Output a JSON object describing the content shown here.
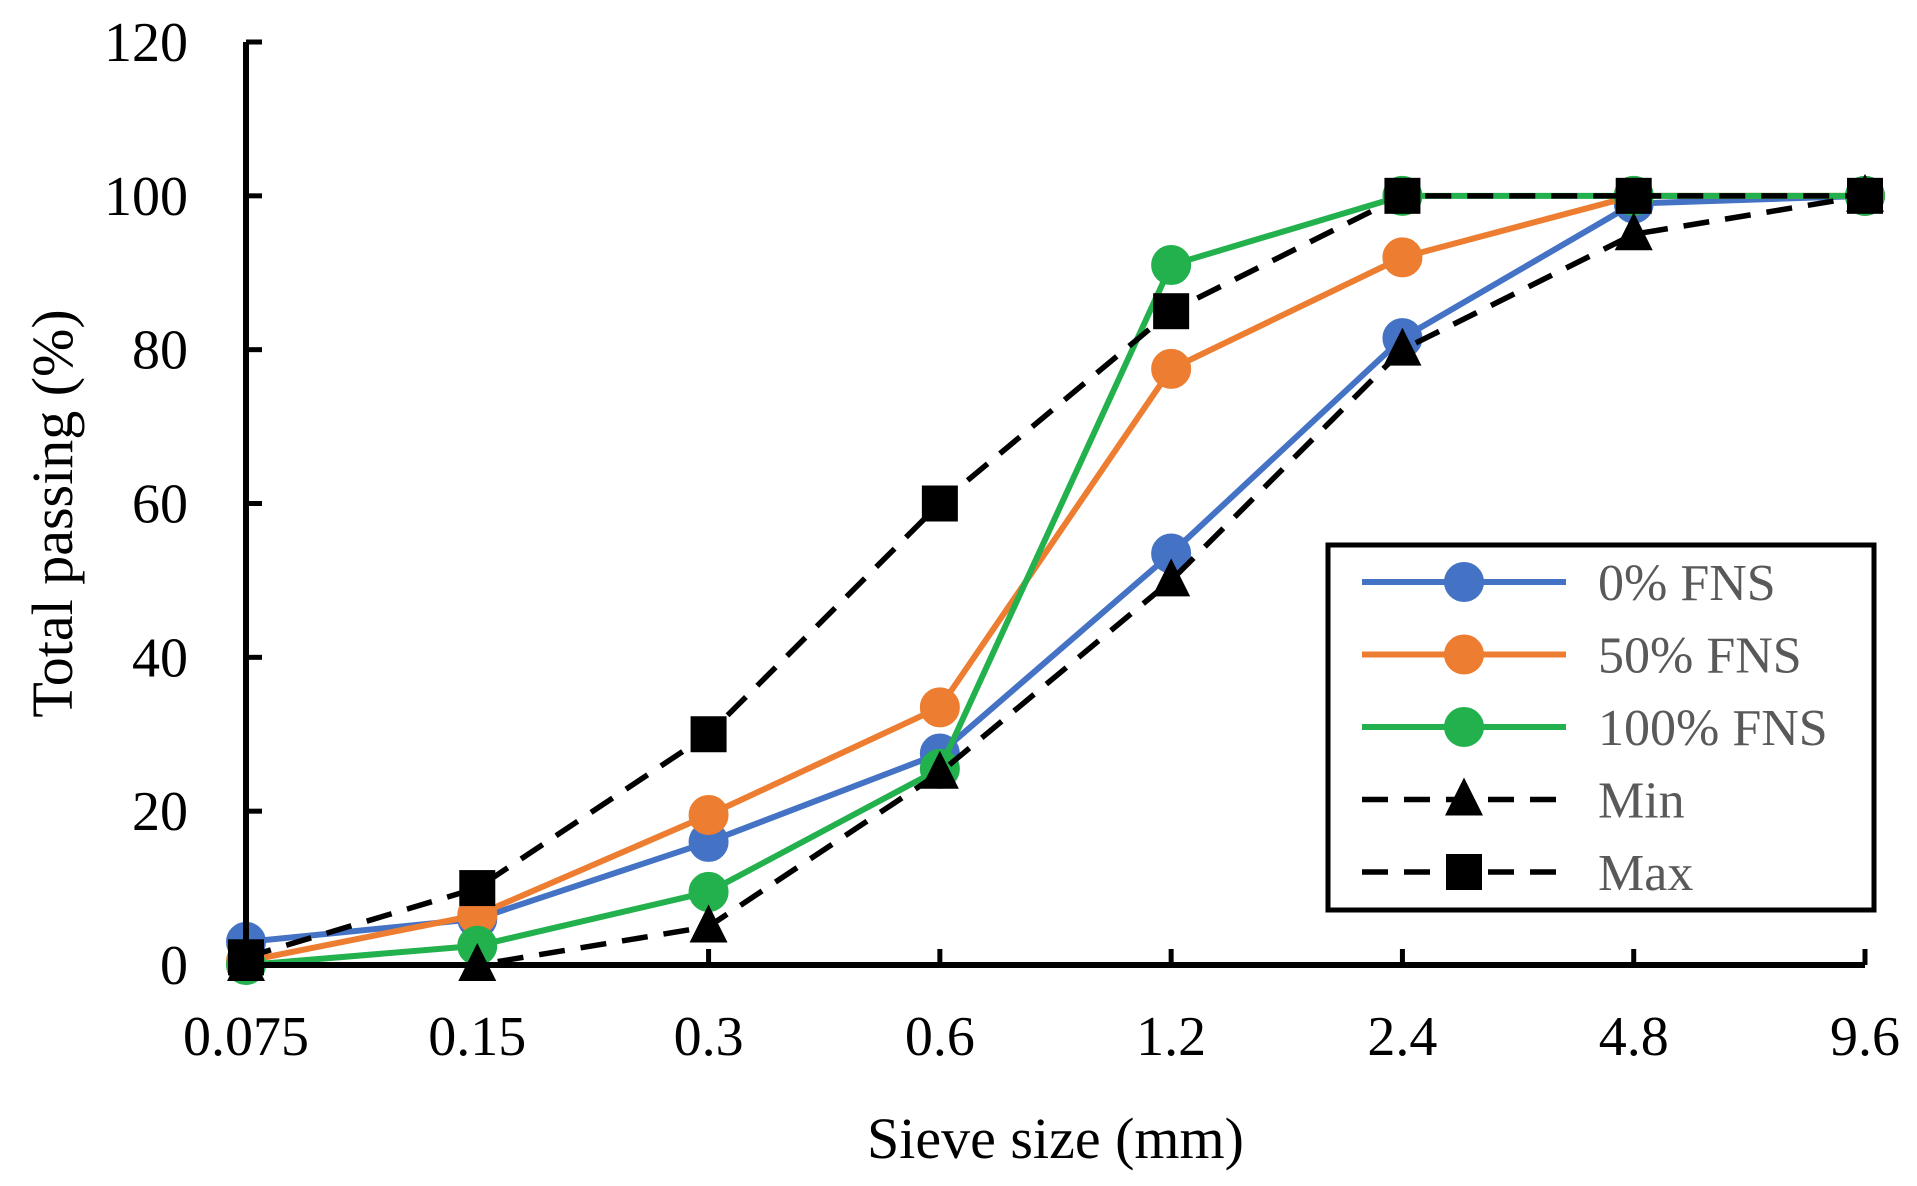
{
  "chart_data": {
    "type": "line",
    "title": "",
    "xlabel": "Sieve size (mm)",
    "ylabel": "Total passing (%)",
    "x_scale": "log2-categorical",
    "categories": [
      "0.075",
      "0.15",
      "0.3",
      "0.6",
      "1.2",
      "2.4",
      "4.8",
      "9.6"
    ],
    "ylim": [
      0,
      120
    ],
    "yticks": [
      "0",
      "20",
      "40",
      "60",
      "80",
      "100",
      "120"
    ],
    "grid": false,
    "legend_position": "right, lower-middle, boxed",
    "series": [
      {
        "name": "0% FNS",
        "color": "#4472C4",
        "line_style": "solid",
        "marker": "circle",
        "values": [
          3,
          6,
          16,
          27.5,
          53.5,
          81.5,
          99,
          100
        ]
      },
      {
        "name": "50% FNS",
        "color": "#ED7D31",
        "line_style": "solid",
        "marker": "circle",
        "values": [
          0.5,
          6.5,
          19.5,
          33.5,
          77.5,
          92,
          100,
          100
        ]
      },
      {
        "name": "100% FNS",
        "color": "#22B14C",
        "line_style": "solid",
        "marker": "circle",
        "values": [
          0,
          2.5,
          9.5,
          25.5,
          91,
          100,
          100,
          100
        ]
      },
      {
        "name": "Min",
        "color": "#000000",
        "line_style": "dashed",
        "marker": "triangle",
        "values": [
          0,
          0,
          5,
          25,
          50,
          80,
          95,
          100
        ]
      },
      {
        "name": "Max",
        "color": "#000000",
        "line_style": "dashed",
        "marker": "square",
        "values": [
          1,
          10,
          30,
          60,
          85,
          100,
          100,
          100
        ]
      }
    ]
  }
}
